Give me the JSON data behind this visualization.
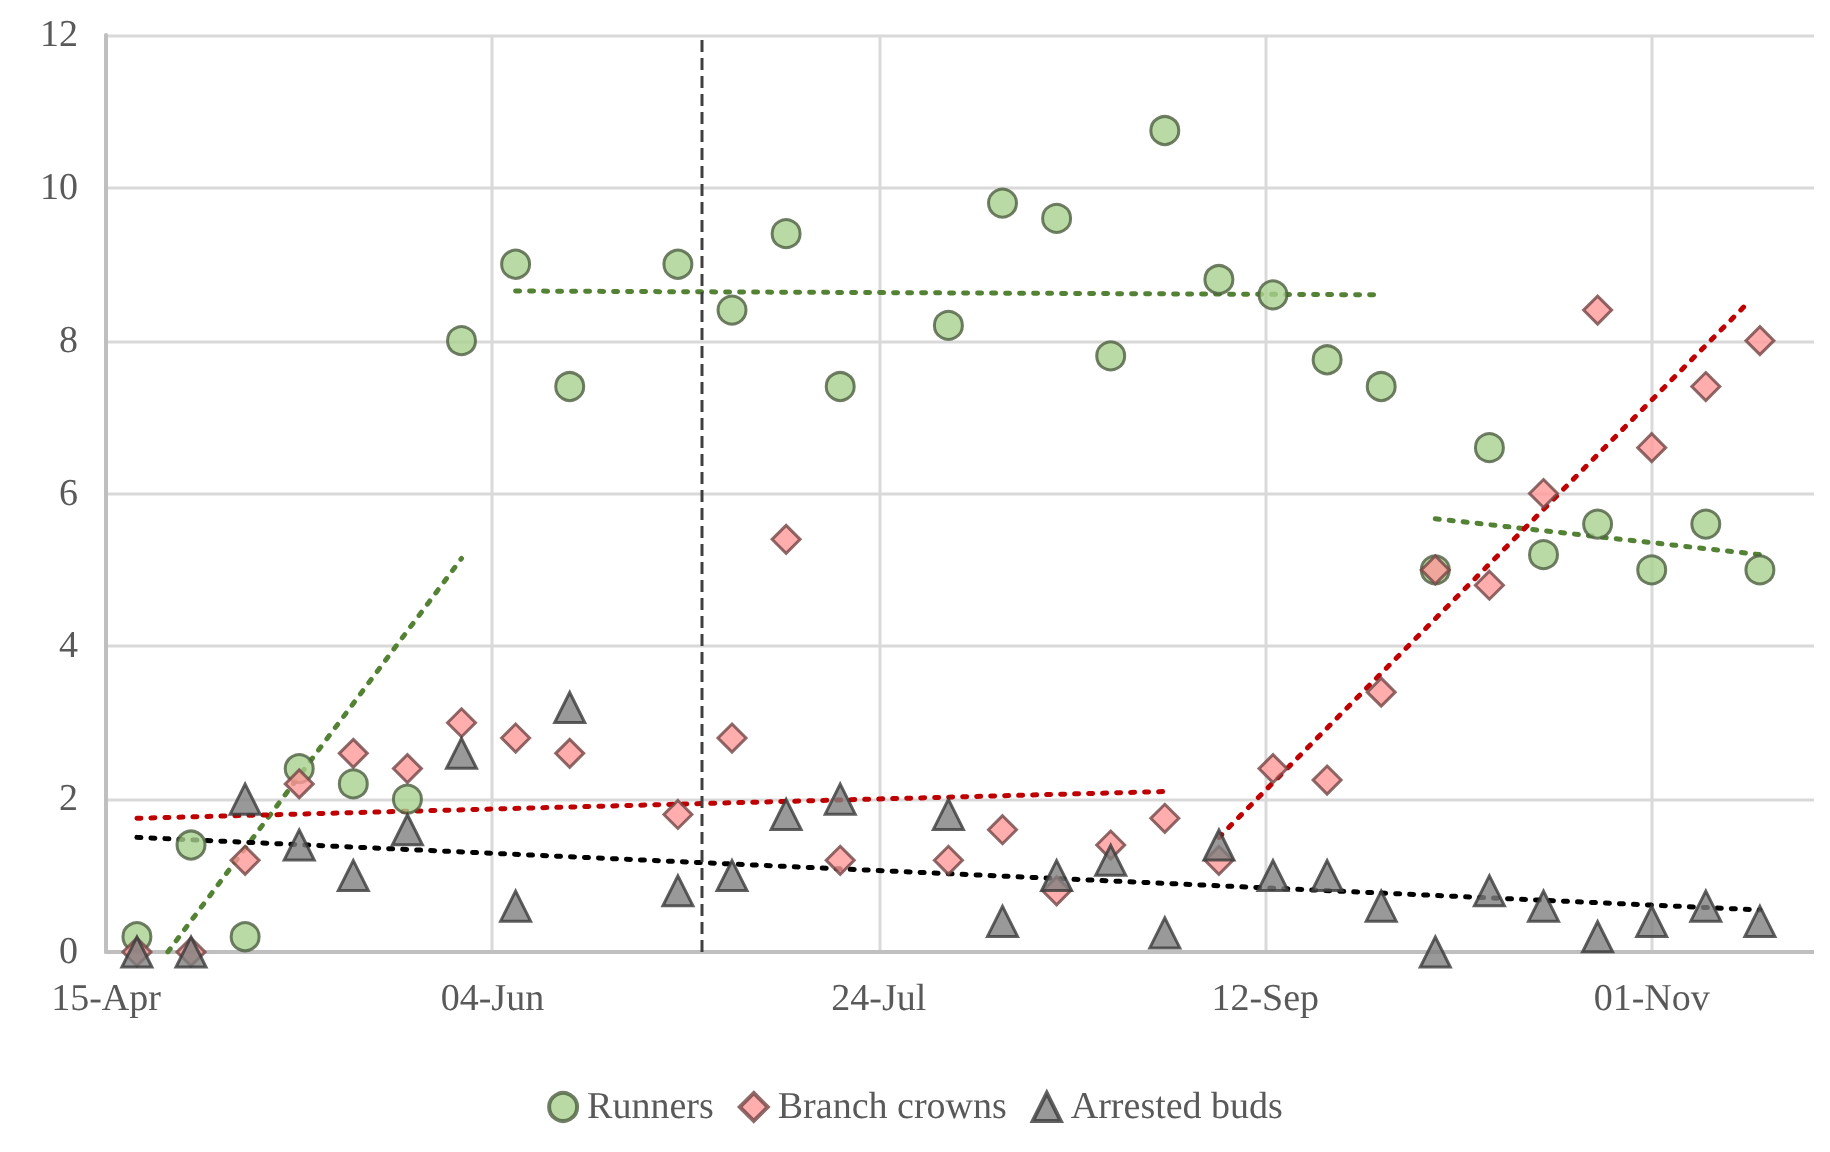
{
  "chart_data": {
    "type": "scatter",
    "x": [
      "--04-19",
      "--04-26",
      "--05-03",
      "--05-10",
      "--05-17",
      "--05-24",
      "--05-31",
      "--06-07",
      "--06-14",
      "--06-21",
      "--06-28",
      "--07-05",
      "--07-12",
      "--07-19",
      "--07-26",
      "--08-02",
      "--08-09",
      "--08-16",
      "--08-23",
      "--08-30",
      "--09-06",
      "--09-13",
      "--09-20",
      "--09-27",
      "--10-04",
      "--10-11",
      "--10-18",
      "--10-25",
      "--11-01",
      "--11-08",
      "--11-15"
    ],
    "series": [
      {
        "name": "Runners",
        "color": "#a9d18e",
        "marker": "circle",
        "values": [
          0.2,
          1.4,
          0.2,
          2.4,
          2.2,
          2.0,
          8.0,
          9.0,
          7.4,
          null,
          9.0,
          8.4,
          9.4,
          7.4,
          null,
          8.2,
          9.8,
          9.6,
          7.8,
          10.75,
          8.8,
          8.6,
          7.75,
          7.4,
          5.0,
          6.6,
          5.2,
          5.6,
          5.0,
          5.6,
          5.0
        ]
      },
      {
        "name": "Branch crowns",
        "color": "#ff9999",
        "marker": "diamond",
        "values": [
          0,
          0,
          1.2,
          2.2,
          2.6,
          2.4,
          3.0,
          2.8,
          2.6,
          null,
          1.8,
          2.8,
          5.4,
          1.2,
          null,
          1.2,
          1.6,
          0.8,
          1.4,
          1.75,
          1.2,
          2.4,
          2.25,
          3.4,
          5.0,
          4.8,
          6.0,
          8.4,
          6.6,
          7.4,
          8.0
        ]
      },
      {
        "name": "Arrested buds",
        "color": "#808080",
        "marker": "triangle",
        "values": [
          0,
          0,
          2.0,
          1.4,
          1.0,
          1.6,
          2.6,
          0.6,
          3.2,
          null,
          0.8,
          1.0,
          1.8,
          2.0,
          null,
          1.8,
          0.4,
          1.0,
          1.2,
          0.25,
          1.4,
          1.0,
          1.0,
          0.6,
          0.0,
          0.8,
          0.6,
          0.2,
          0.4,
          0.6,
          0.4
        ]
      },
      {
        "type": "line",
        "color": "#548235",
        "line_style": "dotted",
        "marker": "none",
        "x": [
          "--04-23",
          "--05-31"
        ],
        "values": [
          0,
          5.15
        ]
      },
      {
        "type": "line",
        "color": "#548235",
        "line_style": "dotted",
        "marker": "none",
        "x": [
          "--06-07",
          "--09-27"
        ],
        "values": [
          8.65,
          8.6
        ]
      },
      {
        "type": "line",
        "color": "#548235",
        "line_style": "dotted",
        "marker": "none",
        "x": [
          "--10-04",
          "--11-15"
        ],
        "values": [
          5.67,
          5.2
        ]
      },
      {
        "type": "line",
        "color": "#c00000",
        "line_style": "dotted",
        "marker": "none",
        "x": [
          "--04-19",
          "--08-30"
        ],
        "values": [
          1.75,
          2.1
        ]
      },
      {
        "type": "line",
        "color": "#c00000",
        "line_style": "dotted",
        "marker": "none",
        "x": [
          "--09-06",
          "--11-13"
        ],
        "values": [
          1.5,
          8.45
        ]
      },
      {
        "type": "line",
        "color": "#000000",
        "line_style": "dotted",
        "marker": "none",
        "x": [
          "--04-19",
          "--11-15"
        ],
        "values": [
          1.5,
          0.55
        ]
      }
    ],
    "xlim": [
      "--04-15",
      "--11-22"
    ],
    "xticks": [
      {
        "value": "--04-15",
        "label": "15-Apr"
      },
      {
        "value": "--06-04",
        "label": "04-Jun"
      },
      {
        "value": "--07-24",
        "label": "24-Jul"
      },
      {
        "value": "--09-12",
        "label": "12-Sep"
      },
      {
        "value": "--11-01",
        "label": "01-Nov"
      }
    ],
    "ylim": [
      0,
      12
    ],
    "yticks": [
      0,
      2,
      4,
      6,
      8,
      10,
      12
    ],
    "ref_lines": [
      {
        "axis": "x",
        "value": "--07-01",
        "color": "#404040",
        "line_style": "dashed"
      }
    ],
    "grid": true,
    "legend": "bottom"
  }
}
